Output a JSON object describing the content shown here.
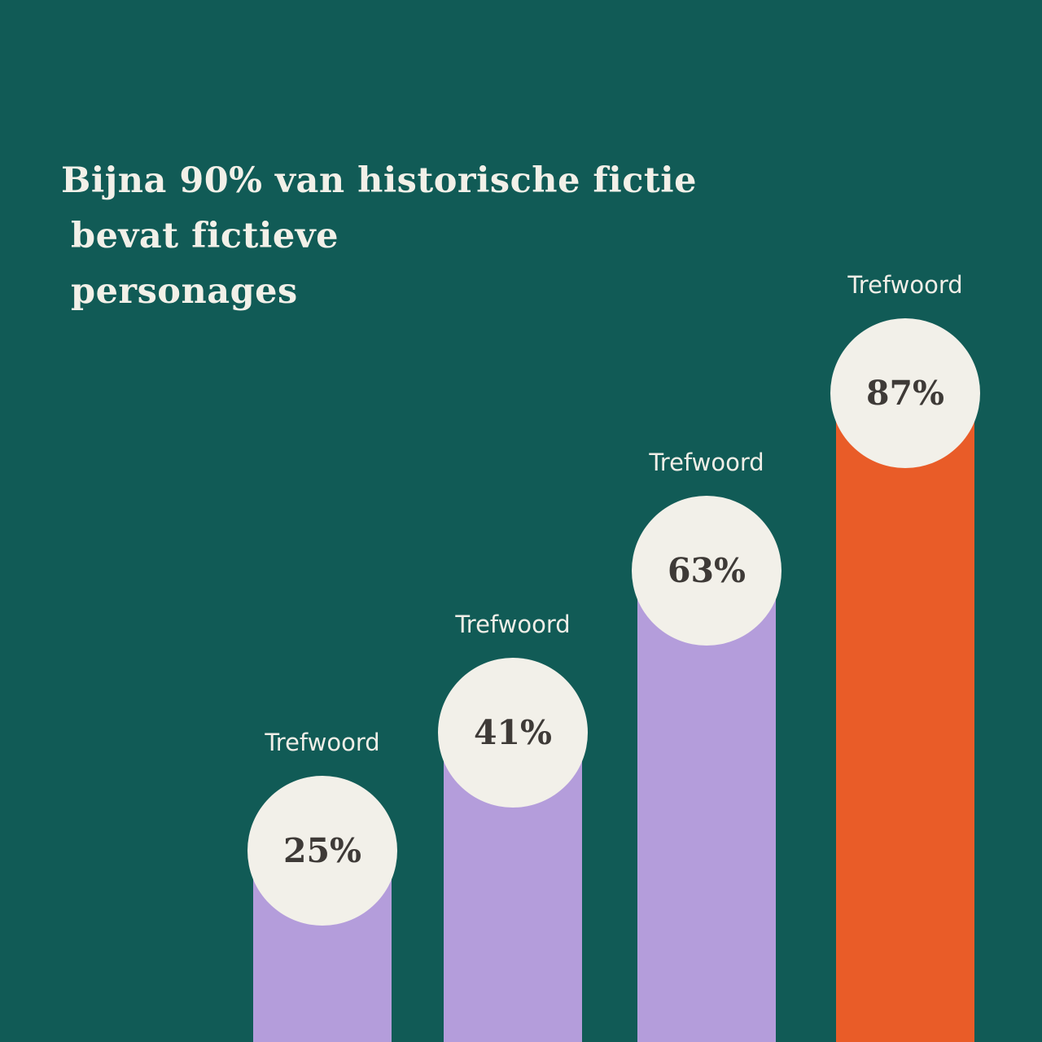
{
  "title": {
    "lines": [
      "Bijna 90% van historische fictie",
      "bevat fictieve",
      "personages"
    ]
  },
  "chart_data": {
    "type": "bar",
    "title": "Bijna 90% van historische fictie bevat fictieve personages",
    "orientation": "vertical",
    "categories": [
      "Trefwoord",
      "Trefwoord",
      "Trefwoord",
      "Trefwoord"
    ],
    "values": [
      25,
      41,
      63,
      87
    ],
    "value_labels": [
      "25%",
      "41%",
      "63%",
      "87%"
    ],
    "unit": "%",
    "ylim": [
      0,
      100
    ],
    "grid": false,
    "legend": "none",
    "bar_colors": [
      "#b49ddb",
      "#b49ddb",
      "#b49ddb",
      "#e95c28"
    ],
    "bubble_color": "#f2f0e9",
    "value_text_color": "#3e3a37",
    "label_text_color": "#f0eee7",
    "background_color": "#115b56",
    "title_color": "#f2f0e8"
  }
}
